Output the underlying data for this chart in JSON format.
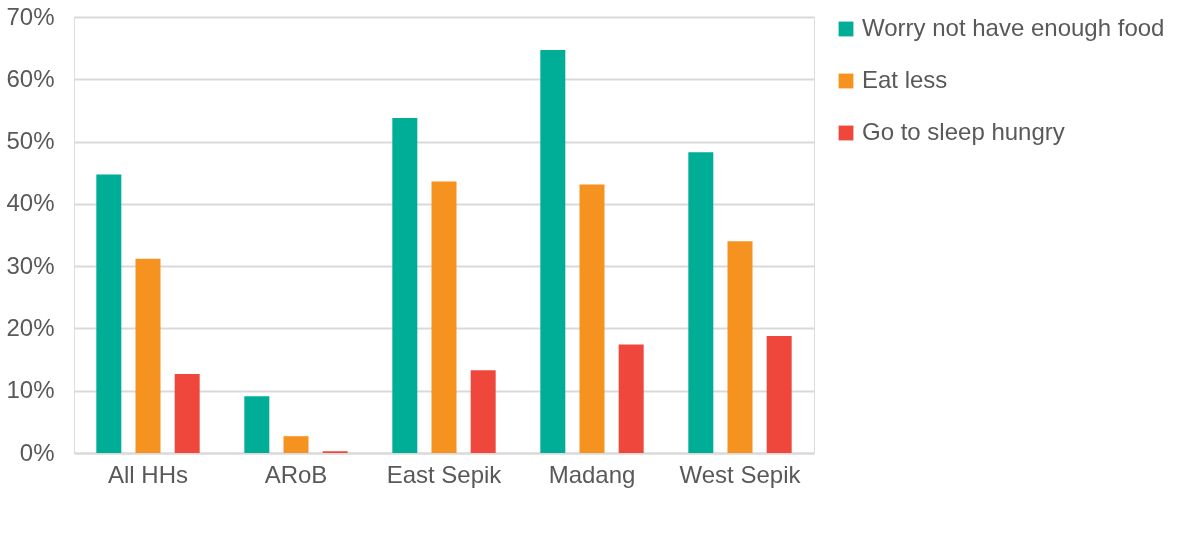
{
  "chart_data": {
    "type": "bar",
    "categories": [
      "All HHs",
      "ARoB",
      "East Sepik",
      "Madang",
      "West Sepik"
    ],
    "series": [
      {
        "name": "Worry not have enough food",
        "color": "#00ae98",
        "values": [
          44.7,
          9.1,
          53.8,
          64.7,
          48.3
        ]
      },
      {
        "name": "Eat less",
        "color": "#f59220",
        "values": [
          31.2,
          2.7,
          43.6,
          43.1,
          34.0
        ]
      },
      {
        "name": "Go to sleep hungry",
        "color": "#ef473c",
        "values": [
          12.7,
          0.3,
          13.3,
          17.4,
          18.8
        ]
      }
    ],
    "ylim": [
      0,
      70
    ],
    "yticks": [
      {
        "value": 0,
        "label": "0%"
      },
      {
        "value": 10,
        "label": "10%"
      },
      {
        "value": 20,
        "label": "20%"
      },
      {
        "value": 30,
        "label": "30%"
      },
      {
        "value": 40,
        "label": "40%"
      },
      {
        "value": 50,
        "label": "50%"
      },
      {
        "value": 60,
        "label": "60%"
      },
      {
        "value": 70,
        "label": "70%"
      }
    ],
    "grid": "y",
    "legend": "right"
  }
}
